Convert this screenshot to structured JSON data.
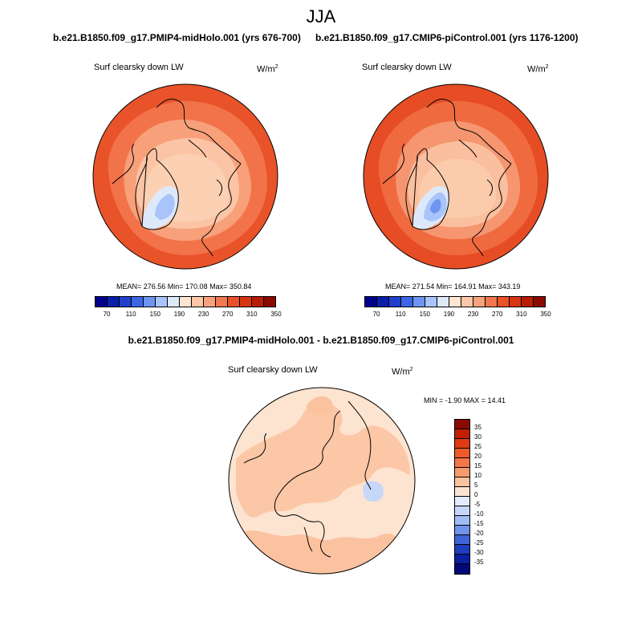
{
  "title": "JJA",
  "panels": [
    {
      "case": "b.e21.B1850.f09_g17.PMIP4-midHolo.001 (yrs 676-700)",
      "variable": "Surf clearsky down LW",
      "units": "W/m",
      "units_exp": "2",
      "stats": "MEAN= 276.56  Min= 170.08  Max= 350.84"
    },
    {
      "case": "b.e21.B1850.f09_g17.CMIP6-piControl.001 (yrs 1176-1200)",
      "variable": "Surf clearsky down LW",
      "units": "W/m",
      "units_exp": "2",
      "stats": "MEAN= 271.54  Min= 164.91  Max= 343.19"
    }
  ],
  "diff": {
    "title": "b.e21.B1850.f09_g17.PMIP4-midHolo.001 - b.e21.B1850.f09_g17.CMIP6-piControl.001",
    "variable": "Surf clearsky down LW",
    "units": "W/m",
    "units_exp": "2",
    "stats": "MIN =  -1.90 MAX =  14.41"
  },
  "colorbar_abs": {
    "colors": [
      "#00008b",
      "#0a1fa8",
      "#1f3fcc",
      "#3d66e6",
      "#6e95f2",
      "#a8c4fa",
      "#dde9fb",
      "#fde5d2",
      "#fbc7a8",
      "#f7a27d",
      "#f2784f",
      "#ea5229",
      "#d83512",
      "#b81c05",
      "#8a0a00"
    ],
    "labels": [
      "70",
      "110",
      "150",
      "190",
      "230",
      "270",
      "310",
      "350"
    ]
  },
  "colorbar_diff": {
    "colors": [
      "#8a0a00",
      "#c02003",
      "#e03b12",
      "#ee5a2a",
      "#f4774a",
      "#f79a6c",
      "#fbc2a0",
      "#fde4d0",
      "#e3ecfc",
      "#c6d7fa",
      "#9fbcf6",
      "#6f93ea",
      "#3f64d8",
      "#1e3dbf",
      "#0b1ea0",
      "#02077a"
    ],
    "labels": [
      "35",
      "30",
      "25",
      "20",
      "15",
      "10",
      "5",
      "0",
      "-5",
      "-10",
      "-15",
      "-20",
      "-25",
      "-30",
      "-35"
    ]
  }
}
